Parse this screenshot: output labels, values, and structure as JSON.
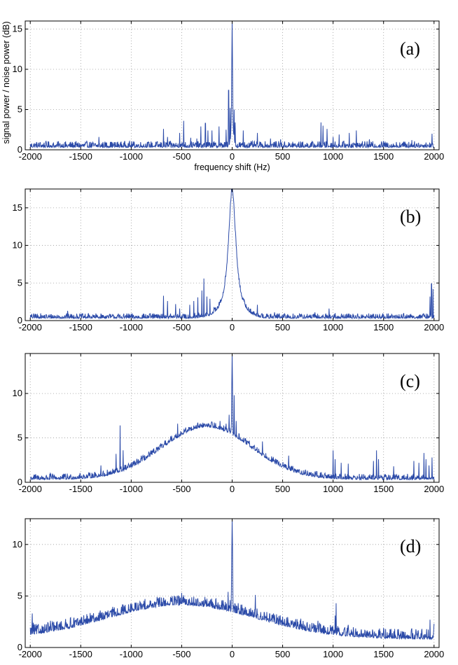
{
  "chart_data": [
    {
      "type": "line",
      "panel_label": "(a)",
      "xlabel": "frequency shift (Hz)",
      "ylabel": "signal power / noise power (dB)",
      "xlim": [
        -2050,
        2050
      ],
      "ylim": [
        0,
        16
      ],
      "x_ticks": [
        -2000,
        -1500,
        -1000,
        -500,
        0,
        500,
        1000,
        1500,
        2000
      ],
      "y_ticks": [
        0,
        5,
        10,
        15
      ],
      "grid": true,
      "line_color": "#2b4aa8",
      "model": {
        "baseline": 0.3,
        "noise": 0.35,
        "peak": {
          "center": 0,
          "height": 16.0,
          "width": 5
        },
        "broad": {
          "center": 0,
          "height": 0,
          "width": 600
        },
        "spikes": [
          [
            -1900,
            0.9
          ],
          [
            -1720,
            0.8
          ],
          [
            -1320,
            1.6
          ],
          [
            -1250,
            0.9
          ],
          [
            -1100,
            0.8
          ],
          [
            -680,
            2.6
          ],
          [
            -640,
            1.6
          ],
          [
            -520,
            2.1
          ],
          [
            -480,
            3.6
          ],
          [
            -410,
            1.5
          ],
          [
            -350,
            1.4
          ],
          [
            -310,
            2.9
          ],
          [
            -265,
            3.3
          ],
          [
            -240,
            2.4
          ],
          [
            -200,
            2.4
          ],
          [
            -130,
            2.9
          ],
          [
            -60,
            2.5
          ],
          [
            -35,
            7.4
          ],
          [
            -20,
            5.2
          ],
          [
            20,
            5.0
          ],
          [
            30,
            3.4
          ],
          [
            110,
            2.4
          ],
          [
            250,
            2.1
          ],
          [
            380,
            1.4
          ],
          [
            480,
            1.3
          ],
          [
            600,
            1.0
          ],
          [
            880,
            3.4
          ],
          [
            900,
            3.0
          ],
          [
            940,
            2.6
          ],
          [
            1000,
            1.6
          ],
          [
            1060,
            1.9
          ],
          [
            1160,
            2.1
          ],
          [
            1230,
            2.4
          ],
          [
            1360,
            1.3
          ],
          [
            1500,
            1.1
          ],
          [
            1710,
            1.0
          ],
          [
            1780,
            1.2
          ],
          [
            1920,
            0.9
          ],
          [
            1980,
            2.0
          ],
          [
            2020,
            2.4
          ]
        ]
      }
    },
    {
      "type": "line",
      "panel_label": "(b)",
      "xlabel": "",
      "ylabel": "",
      "xlim": [
        -2050,
        2050
      ],
      "ylim": [
        0,
        17.5
      ],
      "x_ticks": [
        -2000,
        -1500,
        -1000,
        -500,
        0,
        500,
        1000,
        1500,
        2000
      ],
      "y_ticks": [
        0,
        5,
        10,
        15
      ],
      "grid": true,
      "line_color": "#2b4aa8",
      "model": {
        "baseline": 0.3,
        "noise": 0.3,
        "peak": {
          "center": 0,
          "height": 17.3,
          "width": 45
        },
        "broad": {
          "center": 0,
          "height": 0,
          "width": 600
        },
        "spikes": [
          [
            -1950,
            0.9
          ],
          [
            -1630,
            1.3
          ],
          [
            -1000,
            0.6
          ],
          [
            -680,
            3.3
          ],
          [
            -640,
            2.6
          ],
          [
            -560,
            2.2
          ],
          [
            -520,
            1.6
          ],
          [
            -420,
            2.1
          ],
          [
            -380,
            2.6
          ],
          [
            -340,
            3.1
          ],
          [
            -300,
            4.0
          ],
          [
            -280,
            5.6
          ],
          [
            -250,
            3.2
          ],
          [
            -220,
            2.9
          ],
          [
            -180,
            1.8
          ],
          [
            250,
            2.1
          ],
          [
            420,
            1.1
          ],
          [
            520,
            0.9
          ],
          [
            820,
            1.1
          ],
          [
            960,
            1.6
          ],
          [
            1020,
            1.0
          ],
          [
            1150,
            0.9
          ],
          [
            1500,
            0.8
          ],
          [
            1700,
            1.0
          ],
          [
            1960,
            3.2
          ],
          [
            1975,
            4.9
          ],
          [
            1990,
            4.2
          ],
          [
            2005,
            3.0
          ]
        ]
      }
    },
    {
      "type": "line",
      "panel_label": "(c)",
      "xlabel": "",
      "ylabel": "",
      "xlim": [
        -2050,
        2050
      ],
      "ylim": [
        0,
        14.5
      ],
      "x_ticks": [
        -2000,
        -1500,
        -1000,
        -500,
        0,
        500,
        1000,
        1500,
        2000
      ],
      "y_ticks": [
        0,
        5,
        10
      ],
      "grid": true,
      "line_color": "#2b4aa8",
      "model": {
        "baseline": 0.3,
        "noise": 0.3,
        "peak": {
          "center": 0,
          "height": 14.5,
          "width": 6
        },
        "broad": {
          "center": -250,
          "height": 5.9,
          "width": 620
        },
        "spikes": [
          [
            -1800,
            1.0
          ],
          [
            -1300,
            1.9
          ],
          [
            -1150,
            3.2
          ],
          [
            -1110,
            6.4
          ],
          [
            -1080,
            3.6
          ],
          [
            -900,
            3.0
          ],
          [
            -700,
            4.2
          ],
          [
            -560,
            5.1
          ],
          [
            -540,
            6.6
          ],
          [
            -520,
            4.6
          ],
          [
            -430,
            6.1
          ],
          [
            -300,
            6.4
          ],
          [
            -240,
            6.6
          ],
          [
            -200,
            6.8
          ],
          [
            -120,
            6.9
          ],
          [
            -60,
            6.6
          ],
          [
            -30,
            7.6
          ],
          [
            20,
            9.8
          ],
          [
            40,
            6.9
          ],
          [
            300,
            4.6
          ],
          [
            560,
            3.0
          ],
          [
            1000,
            3.6
          ],
          [
            1020,
            2.6
          ],
          [
            1080,
            2.2
          ],
          [
            1150,
            2.1
          ],
          [
            1400,
            2.4
          ],
          [
            1430,
            3.6
          ],
          [
            1450,
            2.6
          ],
          [
            1600,
            1.8
          ],
          [
            1800,
            2.4
          ],
          [
            1850,
            2.2
          ],
          [
            1900,
            3.3
          ],
          [
            1920,
            2.6
          ],
          [
            1950,
            1.9
          ],
          [
            1980,
            2.8
          ]
        ]
      }
    },
    {
      "type": "line",
      "panel_label": "(d)",
      "xlabel": "",
      "ylabel": "",
      "xlim": [
        -2050,
        2050
      ],
      "ylim": [
        0,
        12.5
      ],
      "x_ticks": [
        -2000,
        -1500,
        -1000,
        -500,
        0,
        500,
        1000,
        1500,
        2000
      ],
      "y_ticks": [
        0,
        5,
        10
      ],
      "grid": true,
      "line_color": "#2b4aa8",
      "model": {
        "baseline": 0.8,
        "noise": 0.45,
        "peak": {
          "center": 0,
          "height": 12.4,
          "width": 6
        },
        "broad": {
          "center": -500,
          "height": 3.3,
          "width": 1050
        },
        "spikes": [
          [
            -1980,
            3.3
          ],
          [
            -1970,
            2.4
          ],
          [
            -1800,
            2.6
          ],
          [
            -1600,
            2.9
          ],
          [
            -1100,
            3.6
          ],
          [
            -750,
            4.2
          ],
          [
            -600,
            4.4
          ],
          [
            -540,
            5.0
          ],
          [
            -500,
            5.3
          ],
          [
            -480,
            4.3
          ],
          [
            -380,
            4.4
          ],
          [
            -300,
            4.5
          ],
          [
            -210,
            4.3
          ],
          [
            -100,
            4.1
          ],
          [
            -40,
            5.4
          ],
          [
            -20,
            4.6
          ],
          [
            30,
            4.2
          ],
          [
            60,
            4.3
          ],
          [
            200,
            3.6
          ],
          [
            230,
            5.1
          ],
          [
            320,
            3.4
          ],
          [
            500,
            3.0
          ],
          [
            680,
            2.8
          ],
          [
            850,
            2.6
          ],
          [
            1020,
            3.1
          ],
          [
            1030,
            4.3
          ],
          [
            1150,
            2.2
          ],
          [
            1500,
            1.5
          ],
          [
            1520,
            1.8
          ],
          [
            1640,
            1.6
          ],
          [
            1700,
            1.2
          ],
          [
            1840,
            1.6
          ],
          [
            1880,
            1.8
          ],
          [
            1960,
            2.7
          ],
          [
            2000,
            2.3
          ]
        ]
      }
    }
  ]
}
